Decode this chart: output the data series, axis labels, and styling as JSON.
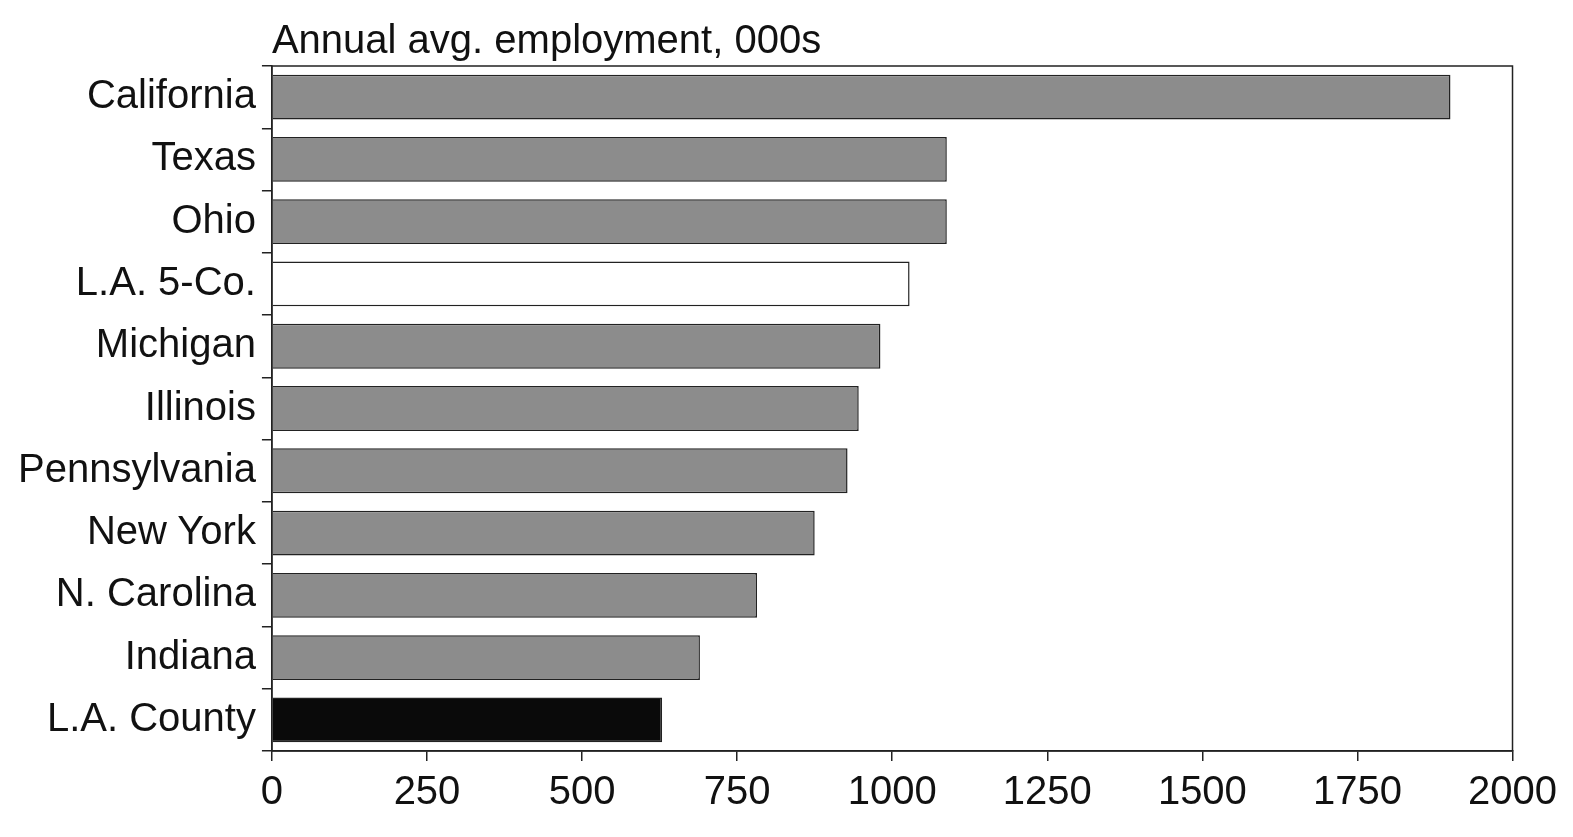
{
  "chart_data": {
    "type": "bar",
    "orientation": "horizontal",
    "title": "Annual avg. employment, 000s",
    "categories": [
      "California",
      "Texas",
      "Ohio",
      "L.A. 5-Co.",
      "Michigan",
      "Illinois",
      "Pennsylvania",
      "New York",
      "N. Carolina",
      "Indiana",
      "L.A. County"
    ],
    "values": [
      1900,
      1088,
      1088,
      1028,
      981,
      946,
      928,
      875,
      782,
      690,
      629
    ],
    "colors": [
      "#8c8c8c",
      "#8c8c8c",
      "#8c8c8c",
      "#ffffff",
      "#8c8c8c",
      "#8c8c8c",
      "#8c8c8c",
      "#8c8c8c",
      "#8c8c8c",
      "#8c8c8c",
      "#0a0a0a"
    ],
    "xlim": [
      0,
      2000
    ],
    "xticks": [
      0,
      250,
      500,
      750,
      1000,
      1250,
      1500,
      1750,
      2000
    ],
    "grid": false,
    "legend": false
  }
}
